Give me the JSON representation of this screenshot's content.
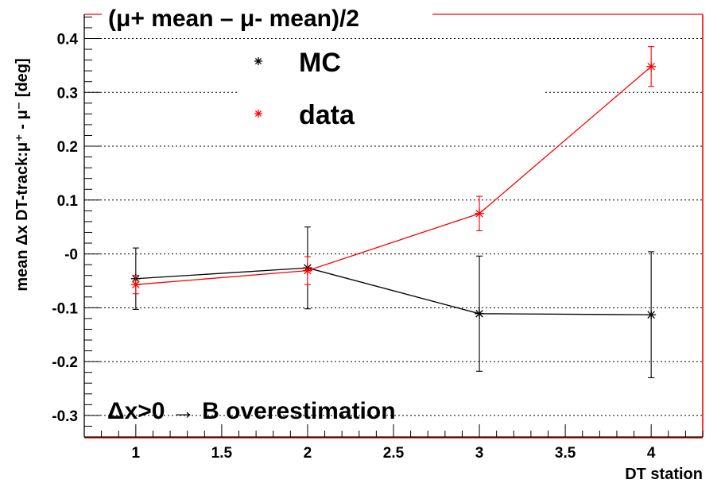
{
  "chart_data": {
    "type": "line",
    "title": "(μ+ mean – μ- mean)/2",
    "xlabel": "DT station",
    "ylabel": "mean Δx DT-track:μ⁺ - μ⁻ [deg]",
    "xlim": [
      0.7,
      4.3
    ],
    "ylim": [
      -0.34,
      0.445
    ],
    "x_ticks": [
      1,
      1.5,
      2,
      2.5,
      3,
      3.5,
      4
    ],
    "x_tick_labels": [
      "1",
      "1.5",
      "2",
      "2.5",
      "3",
      "3.5",
      "4"
    ],
    "y_ticks": [
      -0.3,
      -0.2,
      -0.1,
      0,
      0.1,
      0.2,
      0.3,
      0.4
    ],
    "y_tick_labels": [
      "-0.3",
      "-0.2",
      "-0.1",
      "-0",
      "0.1",
      "0.2",
      "0.3",
      "0.4"
    ],
    "grid": "horizontal dotted",
    "legend_position": "top-center",
    "annotation": "Δx>0 → B overestimation",
    "series": [
      {
        "name": "MC",
        "color": "#000000",
        "marker": "asterisk",
        "x": [
          1,
          2,
          3,
          4
        ],
        "y": [
          -0.046,
          -0.026,
          -0.111,
          -0.113
        ],
        "err": [
          0.057,
          0.076,
          0.107,
          0.117
        ]
      },
      {
        "name": "data",
        "color": "#ff0000",
        "marker": "asterisk",
        "x": [
          1,
          2,
          3,
          4
        ],
        "y": [
          -0.057,
          -0.031,
          0.075,
          0.348
        ],
        "err": [
          0.017,
          0.026,
          0.032,
          0.037
        ]
      }
    ]
  }
}
